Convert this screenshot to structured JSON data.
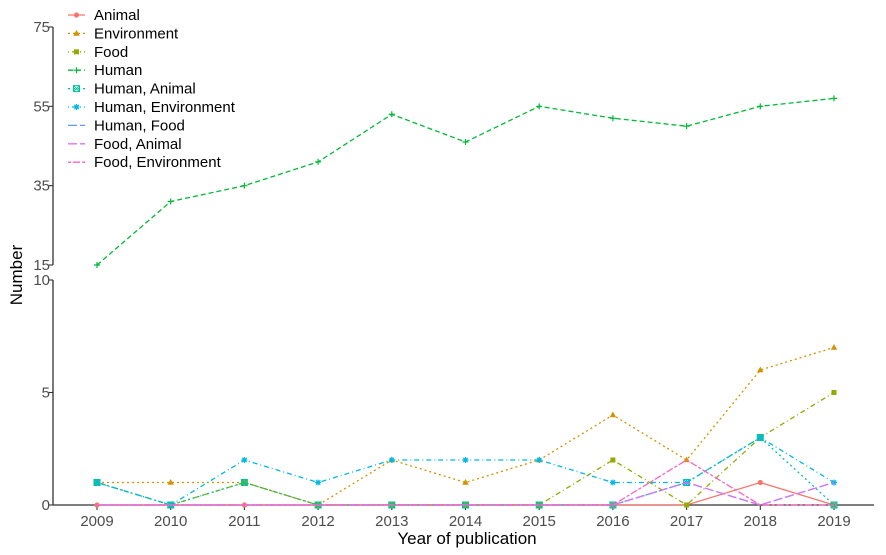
{
  "chart_data": {
    "type": "line",
    "xlabel": "Year of publication",
    "ylabel": "Number",
    "legend_position": "top-left",
    "grid": false,
    "x": [
      2009,
      2010,
      2011,
      2012,
      2013,
      2014,
      2015,
      2016,
      2017,
      2018,
      2019
    ],
    "x_ticks": [
      "2009",
      "2010",
      "2011",
      "2012",
      "2013",
      "2014",
      "2015",
      "2016",
      "2017",
      "2018",
      "2019"
    ],
    "axis_break": true,
    "upper_panel": {
      "ylim": [
        15,
        75
      ],
      "y_ticks": [
        "15",
        "35",
        "55",
        "75"
      ]
    },
    "lower_panel": {
      "ylim": [
        0,
        10
      ],
      "y_ticks": [
        "0",
        "5",
        "10"
      ]
    },
    "series": [
      {
        "name": "Animal",
        "color": "#F8766D",
        "dash": "solid",
        "marker": "circle",
        "panel": "lower",
        "values": [
          0,
          0,
          0,
          0,
          0,
          0,
          0,
          0,
          0,
          1,
          0
        ]
      },
      {
        "name": "Environment",
        "color": "#D39200",
        "dash": "dotted",
        "marker": "triangle",
        "panel": "lower",
        "values": [
          1,
          1,
          1,
          0,
          2,
          1,
          2,
          4,
          2,
          6,
          7
        ]
      },
      {
        "name": "Food",
        "color": "#93AA00",
        "dash": "dotdash",
        "marker": "square",
        "panel": "lower",
        "values": [
          1,
          0,
          1,
          0,
          0,
          0,
          0,
          2,
          0,
          3,
          5
        ]
      },
      {
        "name": "Human",
        "color": "#00BA38",
        "dash": "dashed",
        "marker": "plus",
        "panel": "upper",
        "values": [
          15,
          31,
          35,
          41,
          53,
          46,
          55,
          52,
          50,
          55,
          57
        ]
      },
      {
        "name": "Human, Animal",
        "color": "#00C19F",
        "dash": "dotted",
        "marker": "boxcross",
        "panel": "lower",
        "values": [
          1,
          0,
          1,
          0,
          0,
          0,
          0,
          0,
          1,
          3,
          0
        ]
      },
      {
        "name": "Human, Environment",
        "color": "#00B9E3",
        "dash": "dotdash",
        "marker": "star",
        "panel": "lower",
        "values": [
          1,
          0,
          2,
          1,
          2,
          2,
          2,
          1,
          1,
          3,
          1
        ]
      },
      {
        "name": "Human, Food",
        "color": "#619CFF",
        "dash": "longdash",
        "marker": "none",
        "panel": "lower",
        "values": [
          0,
          0,
          0,
          0,
          0,
          0,
          0,
          0,
          1,
          0,
          1
        ]
      },
      {
        "name": "Food, Animal",
        "color": "#DB72FB",
        "dash": "longdash",
        "marker": "none",
        "panel": "lower",
        "values": [
          0,
          0,
          0,
          0,
          0,
          0,
          0,
          0,
          1,
          0,
          1
        ]
      },
      {
        "name": "Food, Environment",
        "color": "#FF61C3",
        "dash": "twodash",
        "marker": "none",
        "panel": "lower",
        "values": [
          0,
          0,
          0,
          0,
          0,
          0,
          0,
          0,
          2,
          0,
          0
        ]
      }
    ]
  }
}
